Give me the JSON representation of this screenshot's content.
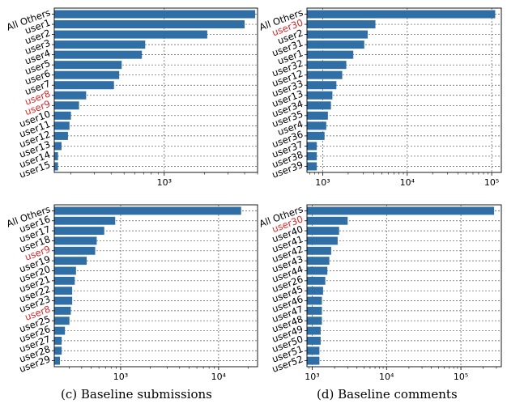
{
  "colors": {
    "bar": "#2f6fa6",
    "highlight_label": "#d62728",
    "label": "#000000",
    "grid": "#555555"
  },
  "captions": {
    "c": "(c) Baseline submissions",
    "d": "(d) Baseline comments"
  },
  "chart_data": [
    {
      "type": "bar",
      "orientation": "horizontal",
      "x_scale": "log",
      "xlim": [
        150,
        5000
      ],
      "xticks": [
        {
          "value": 1000,
          "label": "10³"
        }
      ],
      "grid": true,
      "categories": [
        "All Others",
        "user1",
        "user2",
        "user3",
        "user4",
        "user5",
        "user6",
        "user7",
        "user8",
        "user9",
        "user10",
        "user11",
        "user12",
        "user13",
        "user14",
        "user15"
      ],
      "highlighted": [
        "user8",
        "user9"
      ],
      "values": [
        4800,
        4000,
        2100,
        720,
        680,
        480,
        460,
        420,
        260,
        230,
        200,
        195,
        190,
        170,
        160,
        160
      ]
    },
    {
      "type": "bar",
      "orientation": "horizontal",
      "x_scale": "log",
      "xlim": [
        650,
        130000
      ],
      "xticks": [
        {
          "value": 1000,
          "label": "10³"
        },
        {
          "value": 10000,
          "label": "10⁴"
        },
        {
          "value": 100000,
          "label": "10⁵"
        }
      ],
      "grid": true,
      "categories": [
        "All Others",
        "user30",
        "user2",
        "user31",
        "user1",
        "user32",
        "user12",
        "user33",
        "user13",
        "user34",
        "user35",
        "user4",
        "user36",
        "user37",
        "user38",
        "user39"
      ],
      "highlighted": [
        "user30"
      ],
      "values": [
        110000,
        4200,
        3400,
        3100,
        2300,
        1900,
        1700,
        1450,
        1300,
        1250,
        1150,
        1100,
        1050,
        850,
        850,
        850
      ]
    },
    {
      "type": "bar",
      "orientation": "horizontal",
      "x_scale": "log",
      "xlim": [
        210,
        25000
      ],
      "xticks": [
        {
          "value": 1000,
          "label": "10³"
        },
        {
          "value": 10000,
          "label": "10⁴"
        }
      ],
      "grid": true,
      "categories": [
        "All Others",
        "user16",
        "user17",
        "user18",
        "user9",
        "user19",
        "user20",
        "user21",
        "user22",
        "user23",
        "user8",
        "user25",
        "user26",
        "user27",
        "user28",
        "user29"
      ],
      "highlighted": [
        "user9",
        "user8"
      ],
      "values": [
        17000,
        880,
        680,
        570,
        550,
        450,
        350,
        340,
        320,
        320,
        310,
        300,
        270,
        250,
        250,
        240
      ]
    },
    {
      "type": "bar",
      "orientation": "horizontal",
      "x_scale": "log",
      "xlim": [
        850,
        350000
      ],
      "xticks": [
        {
          "value": 1000,
          "label": "10³"
        },
        {
          "value": 10000,
          "label": "10⁴"
        },
        {
          "value": 100000,
          "label": "10⁵"
        }
      ],
      "grid": true,
      "categories": [
        "All Others",
        "user30",
        "user40",
        "user41",
        "user42",
        "user43",
        "user44",
        "user26",
        "user45",
        "user46",
        "user47",
        "user48",
        "user49",
        "user50",
        "user51",
        "user52"
      ],
      "highlighted": [
        "user30"
      ],
      "values": [
        280000,
        3000,
        2300,
        2200,
        1800,
        1700,
        1600,
        1500,
        1400,
        1350,
        1350,
        1350,
        1300,
        1300,
        1250,
        1250
      ]
    }
  ]
}
